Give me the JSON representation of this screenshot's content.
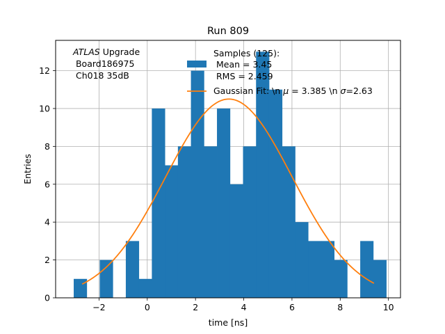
{
  "chart_data": {
    "type": "bar",
    "title": "Run 809",
    "xlabel": "time [ns]",
    "ylabel": "Entries",
    "xlim": [
      -3.8,
      10.5
    ],
    "ylim": [
      0,
      13.6
    ],
    "xticks": [
      -2,
      0,
      2,
      4,
      6,
      8,
      10
    ],
    "xtick_labels": [
      "−2",
      "0",
      "2",
      "4",
      "6",
      "8",
      "10"
    ],
    "yticks": [
      0,
      2,
      4,
      6,
      8,
      10,
      12
    ],
    "ytick_labels": [
      "0",
      "2",
      "4",
      "6",
      "8",
      "10",
      "12"
    ],
    "grid": true,
    "bar_color": "#1f77b4",
    "fit_color": "#ff7f0e",
    "bins": [
      {
        "x0": -3.05,
        "x1": -2.51,
        "count": 1
      },
      {
        "x0": -2.51,
        "x1": -1.97,
        "count": 0
      },
      {
        "x0": -1.97,
        "x1": -1.43,
        "count": 2
      },
      {
        "x0": -1.43,
        "x1": -0.89,
        "count": 0
      },
      {
        "x0": -0.89,
        "x1": -0.35,
        "count": 3
      },
      {
        "x0": -0.35,
        "x1": 0.19,
        "count": 1
      },
      {
        "x0": 0.19,
        "x1": 0.73,
        "count": 10
      },
      {
        "x0": 0.73,
        "x1": 1.27,
        "count": 7
      },
      {
        "x0": 1.27,
        "x1": 1.81,
        "count": 8
      },
      {
        "x0": 1.81,
        "x1": 2.35,
        "count": 12
      },
      {
        "x0": 2.35,
        "x1": 2.89,
        "count": 8
      },
      {
        "x0": 2.89,
        "x1": 3.43,
        "count": 10
      },
      {
        "x0": 3.43,
        "x1": 3.97,
        "count": 6
      },
      {
        "x0": 3.97,
        "x1": 4.51,
        "count": 8
      },
      {
        "x0": 4.51,
        "x1": 5.05,
        "count": 13
      },
      {
        "x0": 5.05,
        "x1": 5.59,
        "count": 11
      },
      {
        "x0": 5.59,
        "x1": 6.13,
        "count": 8
      },
      {
        "x0": 6.13,
        "x1": 6.67,
        "count": 4
      },
      {
        "x0": 6.67,
        "x1": 7.21,
        "count": 3
      },
      {
        "x0": 7.21,
        "x1": 7.75,
        "count": 3
      },
      {
        "x0": 7.75,
        "x1": 8.29,
        "count": 2
      },
      {
        "x0": 8.29,
        "x1": 8.83,
        "count": 0
      },
      {
        "x0": 8.83,
        "x1": 9.37,
        "count": 3
      },
      {
        "x0": 9.37,
        "x1": 9.91,
        "count": 2
      }
    ],
    "fit": {
      "mu": 3.385,
      "sigma": 2.63,
      "amplitude": 10.5,
      "x_start": -2.7,
      "x_end": 9.4
    },
    "annotation": {
      "italic": "ATLAS",
      "rest": " Upgrade",
      "line2": " Board186975",
      "line3": " Ch018 35dB"
    },
    "legend": {
      "placement": "upper-center",
      "samples_line1": "Samples (125):",
      "samples_line2": " Mean = 3.45",
      "samples_line3": " RMS = 2.459",
      "fit_label_pre": "Gaussian Fit: \\n ",
      "fit_label_mu": "μ",
      "fit_label_mid": " = 3.385 \\n ",
      "fit_label_sigma": "σ",
      "fit_label_post": "=2.63"
    }
  }
}
